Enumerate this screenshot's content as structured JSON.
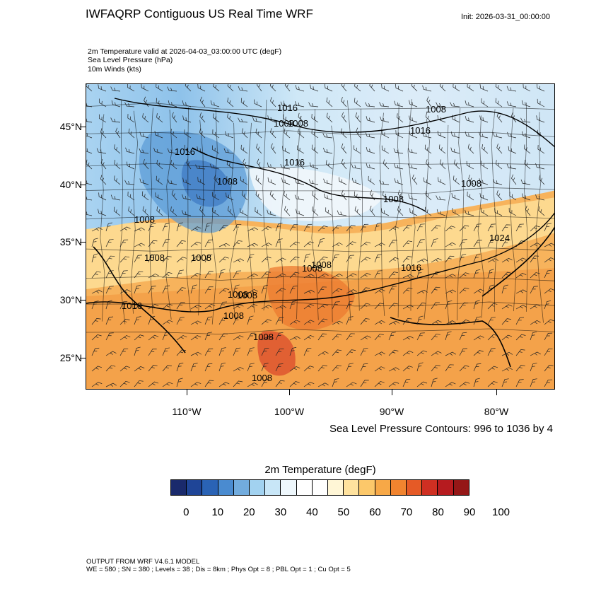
{
  "header": {
    "title": "IWFAQRP Contiguous US Real Time WRF",
    "init": "Init: 2026-03-31_00:00:00"
  },
  "variables": {
    "line1": "2m Temperature valid at 2026-04-03_03:00:00 UTC   (degF)",
    "line2": "Sea Level Pressure   (hPa)",
    "line3": "10m Winds   (kts)"
  },
  "axes": {
    "lat_labels": [
      "45°N",
      "40°N",
      "35°N",
      "30°N",
      "25°N"
    ],
    "lon_labels": [
      "110°W",
      "100°W",
      "90°W",
      "80°W"
    ]
  },
  "slp_note": "Sea Level Pressure Contours: 996 to 1036 by 4",
  "slp_contour_labels": [
    "1016",
    "1016",
    "1008",
    "1016",
    "1008",
    "1008",
    "1008",
    "1008",
    "1008",
    "1016",
    "1008",
    "1008",
    "1016",
    "1024",
    "1008",
    "1008",
    "1016",
    "1008",
    "1008",
    "1008",
    "1008",
    "1008",
    "1008"
  ],
  "colorbar": {
    "title": "2m Temperature  (degF)",
    "colors": [
      "#1a2a6c",
      "#1f4597",
      "#2a63b5",
      "#4a8bd0",
      "#72acde",
      "#a2d2f0",
      "#c8e6f7",
      "#eef7fc",
      "#ffffff",
      "#ffffff",
      "#fff6d6",
      "#ffe29e",
      "#fcc86a",
      "#f7a847",
      "#f1842f",
      "#e55a26",
      "#cf2f22",
      "#b61b1f",
      "#951717"
    ],
    "labels": [
      "0",
      "10",
      "20",
      "30",
      "40",
      "50",
      "60",
      "70",
      "80",
      "90",
      "100"
    ]
  },
  "footer": {
    "line1": "OUTPUT FROM WRF V4.6.1 MODEL",
    "line2": "WE = 580 ; SN = 380 ; Levels = 38 ; Dis = 8km ; Phys Opt = 8 ; PBL Opt = 1 ; Cu Opt = 5"
  }
}
